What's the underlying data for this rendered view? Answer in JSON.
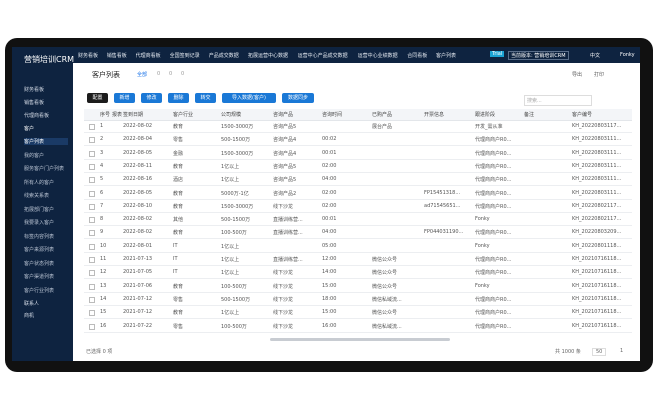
{
  "brand": "营销培训CRM",
  "top_nav": [
    "财务看板",
    "销售看板",
    "代理商看板",
    "全国签到记录",
    "产品成交数据",
    "拓展运营中心数据",
    "运营中心产品成交数据",
    "运营中心业绩数据",
    "合同看板",
    "客户列表"
  ],
  "top_right": {
    "trial": "Trial",
    "version": "当前版本: 营销培训CRM",
    "lang": "中文",
    "user": "Fonky"
  },
  "sidebar": {
    "items_top": [
      "财务看板",
      "销售看板",
      "代理商看板"
    ],
    "group": "客户",
    "sub": [
      "客户列表",
      "我的客户",
      "服务客户门户列表",
      "所有人的客户",
      "线索关系表",
      "拓展部门客户",
      "我要录入客户",
      "标签内容列表",
      "客户来源列表",
      "客户状态列表",
      "客户渠道列表",
      "客户行业列表"
    ],
    "items_bottom": [
      "联系人",
      "商机"
    ]
  },
  "page_title": "客户列表",
  "tabs": [
    "全部",
    "0",
    "0",
    "0"
  ],
  "actions": [
    "导出",
    "打印"
  ],
  "buttons": [
    "配置",
    "新增",
    "修改",
    "删除",
    "转交",
    "导入数据(客户)",
    "数据同步"
  ],
  "search": "搜索...",
  "table": {
    "columns": [
      "序号",
      "报表",
      "签到日期",
      "客户行业",
      "公司规模",
      "咨询产品",
      "咨询时间",
      "已购产品",
      "开票信息",
      "跟进阶段",
      "备注",
      "客户编号"
    ],
    "rows": [
      [
        "1",
        "",
        "2022-08-02",
        "教育",
        "1500-3000万",
        "咨询产品5",
        "",
        "展台产品",
        "",
        "开发_需从准",
        "",
        "KH_20220803117..."
      ],
      [
        "2",
        "",
        "2022-08-04",
        "零售",
        "500-1500万",
        "咨询产品4",
        "00:02",
        "",
        "",
        "代理商商户R0...",
        "",
        "KH_20220803111..."
      ],
      [
        "3",
        "",
        "2022-08-05",
        "金融",
        "1500-3000万",
        "咨询产品4",
        "00:01",
        "",
        "",
        "代理商商户R0...",
        "",
        "KH_20220803111..."
      ],
      [
        "4",
        "",
        "2022-08-11",
        "教育",
        "1亿以上",
        "咨询产品5",
        "02:00",
        "",
        "",
        "代理商商户R0...",
        "",
        "KH_20220803111..."
      ],
      [
        "5",
        "",
        "2022-08-16",
        "酒店",
        "1亿以上",
        "咨询产品5",
        "04:00",
        "",
        "",
        "代理商商户R0...",
        "",
        "KH_20220803111..."
      ],
      [
        "6",
        "",
        "2022-08-05",
        "教育",
        "5000万-1亿",
        "咨询产品2",
        "02:00",
        "",
        "FP15451318...",
        "代理商商户R0...",
        "",
        "KH_20220803111..."
      ],
      [
        "7",
        "",
        "2022-08-10",
        "教育",
        "1500-3000万",
        "线下沙龙",
        "02:00",
        "",
        "ad71545651...",
        "代理商商户R0...",
        "",
        "KH_20220802117..."
      ],
      [
        "8",
        "",
        "2022-08-02",
        "其他",
        "500-1500万",
        "直播训练营...",
        "00:01",
        "",
        "",
        "Fonky",
        "",
        "KH_20220802117..."
      ],
      [
        "9",
        "",
        "2022-08-02",
        "教育",
        "100-500万",
        "直播训练营...",
        "04:00",
        "",
        "FP044031190...",
        "代理商商户R0...",
        "",
        "KH_20220803209..."
      ],
      [
        "10",
        "",
        "2022-08-01",
        "IT",
        "1亿以上",
        "",
        "05:00",
        "",
        "",
        "Fonky",
        "",
        "KH_20220801118..."
      ],
      [
        "11",
        "",
        "2021-07-13",
        "IT",
        "1亿以上",
        "直播训练营...",
        "12:00",
        "微信公众号",
        "",
        "代理商商户R0...",
        "",
        "KH_20210716118..."
      ],
      [
        "12",
        "",
        "2021-07-05",
        "IT",
        "1亿以上",
        "线下沙龙",
        "14:00",
        "微信公众号",
        "",
        "代理商商户R0...",
        "",
        "KH_20210716118..."
      ],
      [
        "13",
        "",
        "2021-07-06",
        "教育",
        "100-500万",
        "线下沙龙",
        "15:00",
        "微信公众号",
        "",
        "Fonky",
        "",
        "KH_20210716118..."
      ],
      [
        "14",
        "",
        "2021-07-12",
        "零售",
        "500-1500万",
        "线下沙龙",
        "18:00",
        "微信私域流...",
        "",
        "代理商商户R0...",
        "",
        "KH_20210716118..."
      ],
      [
        "15",
        "",
        "2021-07-12",
        "教育",
        "1亿以上",
        "线下沙龙",
        "15:00",
        "微信公众号",
        "",
        "代理商商户R0...",
        "",
        "KH_20210716118..."
      ],
      [
        "16",
        "",
        "2021-07-22",
        "零售",
        "100-500万",
        "线下沙龙",
        "16:00",
        "微信私域流...",
        "",
        "代理商商户R0...",
        "",
        "KH_20210716118..."
      ]
    ]
  },
  "footer": {
    "selected": "已选择 0 项",
    "total": "共 1000 条",
    "page_size": "50",
    "page": "1"
  }
}
